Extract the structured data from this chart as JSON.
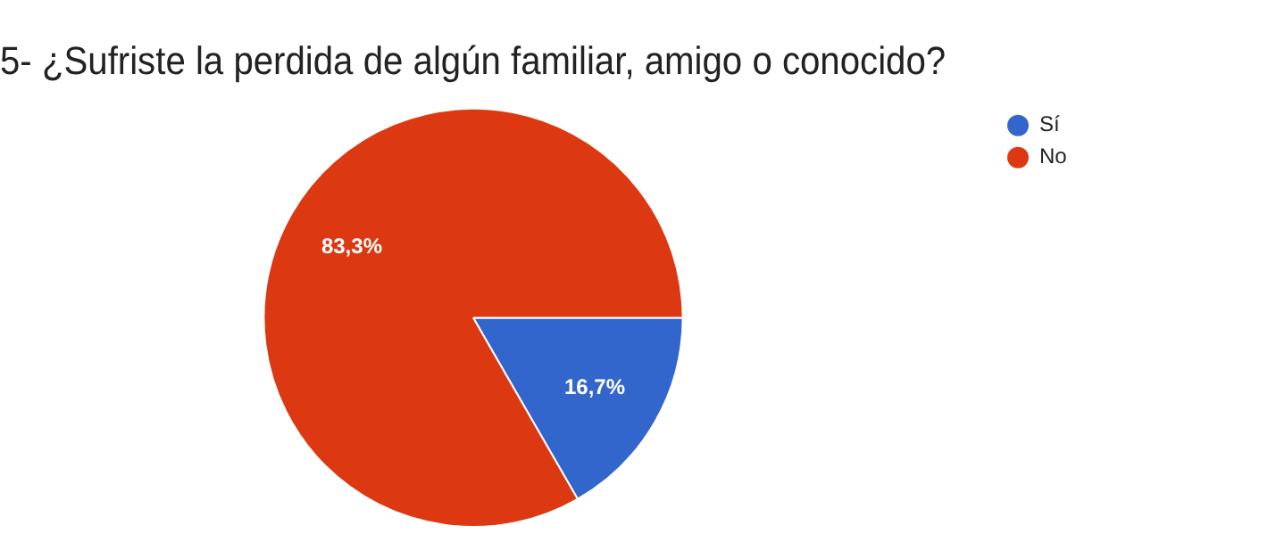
{
  "chart_data": {
    "type": "pie",
    "title": "5- ¿Sufriste la perdida de algún familiar, amigo o conocido?",
    "categories": [
      "Sí",
      "No"
    ],
    "values": [
      16.7,
      83.3
    ],
    "colors": [
      "#3366cc",
      "#dc3912"
    ],
    "value_labels": [
      "16,7%",
      "83,3%"
    ],
    "legend": "right"
  }
}
